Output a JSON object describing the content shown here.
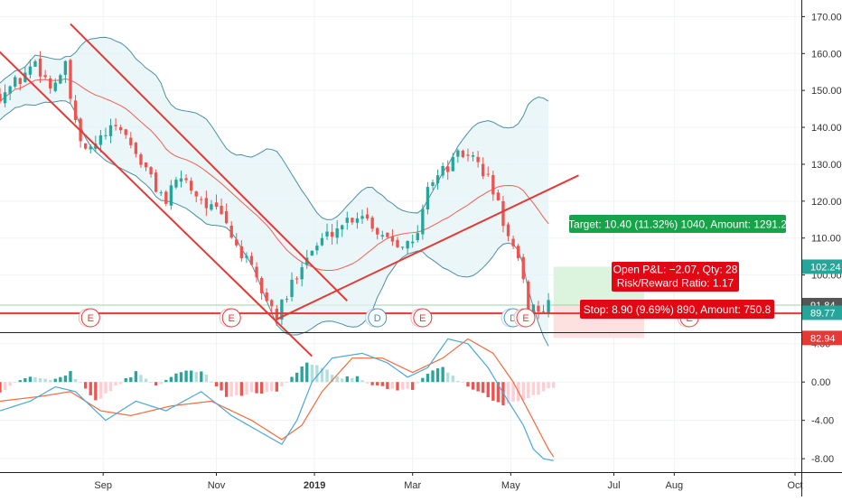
{
  "chart_data": {
    "type": "candlestick",
    "main_panel": {
      "y_ticks": [
        90,
        100,
        110,
        120,
        130,
        140,
        150,
        160,
        170
      ],
      "y_tick_labels": [
        "90.00",
        "100.00",
        "110.00",
        "120.00",
        "130.00",
        "140.00",
        "150.00",
        "160.00",
        "170.00"
      ],
      "ylim": [
        84.5,
        174.5
      ],
      "price_path": [
        {
          "t": 0,
          "p": 149
        },
        {
          "t": 4,
          "p": 153
        },
        {
          "t": 7,
          "p": 158
        },
        {
          "t": 10,
          "p": 151
        },
        {
          "t": 13,
          "p": 156
        },
        {
          "t": 15,
          "p": 140
        },
        {
          "t": 17,
          "p": 133
        },
        {
          "t": 21,
          "p": 138
        },
        {
          "t": 24,
          "p": 140
        },
        {
          "t": 27,
          "p": 133
        },
        {
          "t": 30,
          "p": 126
        },
        {
          "t": 33,
          "p": 120
        },
        {
          "t": 36,
          "p": 127
        },
        {
          "t": 39,
          "p": 122
        },
        {
          "t": 42,
          "p": 118
        },
        {
          "t": 44,
          "p": 116
        },
        {
          "t": 47,
          "p": 108
        },
        {
          "t": 50,
          "p": 101
        },
        {
          "t": 53,
          "p": 93
        },
        {
          "t": 55,
          "p": 89
        },
        {
          "t": 57,
          "p": 94
        },
        {
          "t": 60,
          "p": 104
        },
        {
          "t": 63,
          "p": 108
        },
        {
          "t": 66,
          "p": 112
        },
        {
          "t": 69,
          "p": 115
        },
        {
          "t": 72,
          "p": 117
        },
        {
          "t": 75,
          "p": 112
        },
        {
          "t": 78,
          "p": 110
        },
        {
          "t": 80,
          "p": 109
        },
        {
          "t": 82,
          "p": 108
        },
        {
          "t": 83.5,
          "p": 113
        },
        {
          "t": 85,
          "p": 125
        },
        {
          "t": 88,
          "p": 128
        },
        {
          "t": 91,
          "p": 132
        },
        {
          "t": 93,
          "p": 133
        },
        {
          "t": 95,
          "p": 130
        },
        {
          "t": 97,
          "p": 126
        },
        {
          "t": 99,
          "p": 119
        },
        {
          "t": 101,
          "p": 110
        },
        {
          "t": 103,
          "p": 103
        },
        {
          "t": 104,
          "p": 97
        },
        {
          "t": 105,
          "p": 90
        },
        {
          "t": 106.5,
          "p": 91.5
        },
        {
          "t": 108,
          "p": 90.5
        },
        {
          "t": 109.5,
          "p": 91.8
        }
      ],
      "price_labels": [
        {
          "value": 102.24,
          "text": "102.24",
          "color": "#26a69a"
        },
        {
          "value": 91.84,
          "text": "91.84",
          "color": "#555555"
        },
        {
          "value": 89.77,
          "text": "89.77",
          "color": "#26a69a"
        },
        {
          "value": 82.94,
          "text": "82.94",
          "color": "#e53935"
        }
      ],
      "trendlines": [
        {
          "t1": -2,
          "p1": 163,
          "t2": 62,
          "p2": 78
        },
        {
          "t1": 14,
          "p1": 168,
          "t2": 69,
          "p2": 93
        },
        {
          "t1": 55,
          "p1": 88,
          "t2": 115,
          "p2": 127
        }
      ],
      "horizontal_line": 89.6,
      "position": {
        "entry": 91.84,
        "target": 102.24,
        "stop": 82.94,
        "t_start": 110,
        "t_end": 128
      },
      "position_labels": {
        "target": "Target: 10.40 (11.32%) 1040, Amount: 1291.2",
        "open_pnl": "Open P&L: −2.07, Qty: 28",
        "risk_reward": "Risk/Reward Ratio: 1.17",
        "stop": "Stop: 8.90 (9.69%) 890, Amount: 750.8"
      },
      "events": [
        {
          "t": 18,
          "label": "E"
        },
        {
          "t": 46,
          "label": "E"
        },
        {
          "t": 75,
          "label": "D"
        },
        {
          "t": 84,
          "label": "E"
        },
        {
          "t": 102,
          "label": "D"
        },
        {
          "t": 104.5,
          "label": "E"
        },
        {
          "t": 137,
          "label": "E"
        }
      ]
    },
    "macd_panel": {
      "y_ticks": [
        4,
        0,
        -4,
        -8
      ],
      "y_tick_labels": [
        "4.00",
        "0.00",
        "-4.00",
        "-8.00"
      ],
      "ylim": [
        -9.4,
        5.2
      ],
      "macd_path": [
        {
          "t": 0,
          "v": -3
        },
        {
          "t": 6,
          "v": -2
        },
        {
          "t": 11,
          "v": -0.5
        },
        {
          "t": 15,
          "v": -1
        },
        {
          "t": 21,
          "v": -4
        },
        {
          "t": 27,
          "v": -2
        },
        {
          "t": 33,
          "v": -3
        },
        {
          "t": 40,
          "v": -1
        },
        {
          "t": 46,
          "v": -3.5
        },
        {
          "t": 51,
          "v": -5
        },
        {
          "t": 56,
          "v": -6.5
        },
        {
          "t": 59,
          "v": -4
        },
        {
          "t": 62,
          "v": 0
        },
        {
          "t": 66,
          "v": 2.5
        },
        {
          "t": 72,
          "v": 3
        },
        {
          "t": 77,
          "v": 2
        },
        {
          "t": 81,
          "v": 0.5
        },
        {
          "t": 85,
          "v": 1.5
        },
        {
          "t": 89,
          "v": 4.5
        },
        {
          "t": 93,
          "v": 4
        },
        {
          "t": 97,
          "v": 1.5
        },
        {
          "t": 101,
          "v": -2
        },
        {
          "t": 104,
          "v": -4.5
        },
        {
          "t": 106,
          "v": -7
        },
        {
          "t": 108,
          "v": -8
        },
        {
          "t": 110,
          "v": -8.2
        }
      ],
      "signal_path": [
        {
          "t": 0,
          "v": -2
        },
        {
          "t": 8,
          "v": -1.5
        },
        {
          "t": 14,
          "v": -1
        },
        {
          "t": 20,
          "v": -3
        },
        {
          "t": 26,
          "v": -3.5
        },
        {
          "t": 34,
          "v": -2.5
        },
        {
          "t": 42,
          "v": -2
        },
        {
          "t": 50,
          "v": -4
        },
        {
          "t": 56,
          "v": -6
        },
        {
          "t": 60,
          "v": -4.5
        },
        {
          "t": 64,
          "v": -1
        },
        {
          "t": 70,
          "v": 2.5
        },
        {
          "t": 76,
          "v": 2.5
        },
        {
          "t": 82,
          "v": 1
        },
        {
          "t": 88,
          "v": 2.5
        },
        {
          "t": 93,
          "v": 4.5
        },
        {
          "t": 98,
          "v": 3
        },
        {
          "t": 102,
          "v": 0
        },
        {
          "t": 106,
          "v": -4
        },
        {
          "t": 109,
          "v": -7
        },
        {
          "t": 110,
          "v": -7.8
        }
      ],
      "histogram_path": [
        {
          "t": 0,
          "v": -1
        },
        {
          "t": 5,
          "v": 0.5
        },
        {
          "t": 10,
          "v": 0.2
        },
        {
          "t": 14,
          "v": 1
        },
        {
          "t": 19,
          "v": -2
        },
        {
          "t": 23,
          "v": -0.5
        },
        {
          "t": 27,
          "v": 1
        },
        {
          "t": 31,
          "v": -0.5
        },
        {
          "t": 35,
          "v": 1
        },
        {
          "t": 40,
          "v": 1.2
        },
        {
          "t": 45,
          "v": -1.5
        },
        {
          "t": 50,
          "v": -1.2
        },
        {
          "t": 55,
          "v": -1
        },
        {
          "t": 58,
          "v": 0.5
        },
        {
          "t": 61,
          "v": 2
        },
        {
          "t": 64,
          "v": 1.5
        },
        {
          "t": 67,
          "v": 0.5
        },
        {
          "t": 71,
          "v": 0.5
        },
        {
          "t": 74,
          "v": -0.3
        },
        {
          "t": 78,
          "v": -0.8
        },
        {
          "t": 82,
          "v": -0.8
        },
        {
          "t": 85,
          "v": 1
        },
        {
          "t": 88,
          "v": 1.5
        },
        {
          "t": 91,
          "v": 0.2
        },
        {
          "t": 94,
          "v": -0.8
        },
        {
          "t": 97,
          "v": -1.5
        },
        {
          "t": 100,
          "v": -2.5
        },
        {
          "t": 102,
          "v": -2
        },
        {
          "t": 104,
          "v": -2
        },
        {
          "t": 106,
          "v": -1.5
        },
        {
          "t": 108,
          "v": -1
        },
        {
          "t": 110,
          "v": -0.5
        }
      ]
    },
    "x_axis": {
      "tick_labels": [
        {
          "label": "Sep",
          "t": 20.5
        },
        {
          "label": "Nov",
          "t": 43
        },
        {
          "label": "2019",
          "t": 62.5
        },
        {
          "label": "Mar",
          "t": 82
        },
        {
          "label": "May",
          "t": 101.5
        },
        {
          "label": "Jul",
          "t": 122
        },
        {
          "label": "Aug",
          "t": 134
        },
        {
          "label": "Oct",
          "t": 158
        }
      ],
      "xlim": [
        0,
        160
      ]
    },
    "colors": {
      "up": "#26a69a",
      "down": "#ef5350",
      "bollinger": "#4a90a4",
      "ma": "#f44336",
      "trendline": "#e53935",
      "macd": "#4aa8d8",
      "signal": "#f46a3c",
      "hist_up_strong": "#26a69a",
      "hist_up_weak": "#b2dfdb",
      "hist_down_strong": "#ef5350",
      "hist_down_weak": "#ffcdd2",
      "target_bg": "#16a34a",
      "stop_bg": "#e30613",
      "profit_zone": "#dcf3de",
      "loss_zone": "#fde0e0"
    }
  }
}
